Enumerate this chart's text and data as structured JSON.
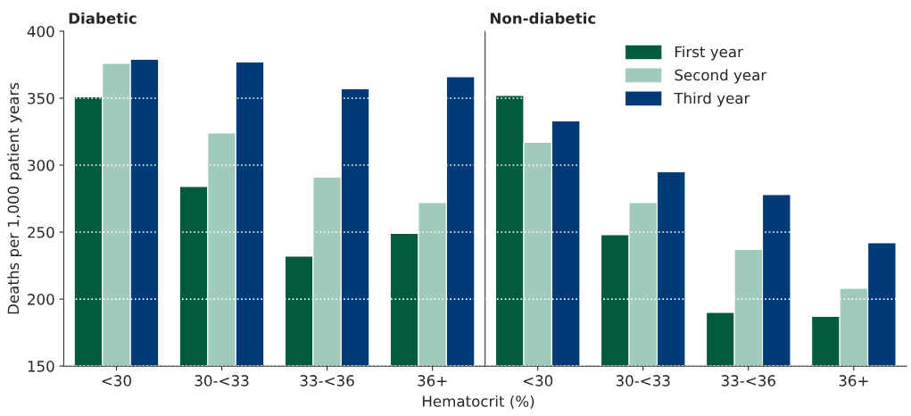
{
  "chart_data": [
    {
      "type": "bar",
      "title": "Diabetic",
      "ylabel": "Deaths per 1,000 patient years",
      "xlabel": "Hematocrit (%)",
      "categories": [
        "<30",
        "30-<33",
        "33-<36",
        "36+"
      ],
      "series": [
        {
          "color": "#005c3c",
          "values": [
            351,
            284,
            232,
            249
          ]
        },
        {
          "color": "#9fcabc",
          "values": [
            376,
            324,
            291,
            272
          ]
        },
        {
          "color": "#003a78",
          "values": [
            379,
            377,
            357,
            366
          ]
        }
      ],
      "ylim": [
        150,
        400
      ],
      "yticks": [
        150,
        200,
        250,
        300,
        350,
        400
      ],
      "grid": "y",
      "legend": false
    },
    {
      "type": "bar",
      "title": "Non-diabetic",
      "categories": [
        "<30",
        "30-<33",
        "33-<36",
        "36+"
      ],
      "series": [
        {
          "name": "First year",
          "color": "#005c3c",
          "values": [
            352,
            248,
            190,
            187
          ]
        },
        {
          "name": "Second year",
          "color": "#9fcabc",
          "values": [
            317,
            272,
            237,
            208
          ]
        },
        {
          "name": "Third year",
          "color": "#003a78",
          "values": [
            333,
            295,
            278,
            242
          ]
        }
      ],
      "ylim": [
        150,
        400
      ],
      "yticks": [
        150,
        200,
        250,
        300,
        350,
        400
      ],
      "grid": "y",
      "legend": "top",
      "tick_labels": "x"
    }
  ]
}
